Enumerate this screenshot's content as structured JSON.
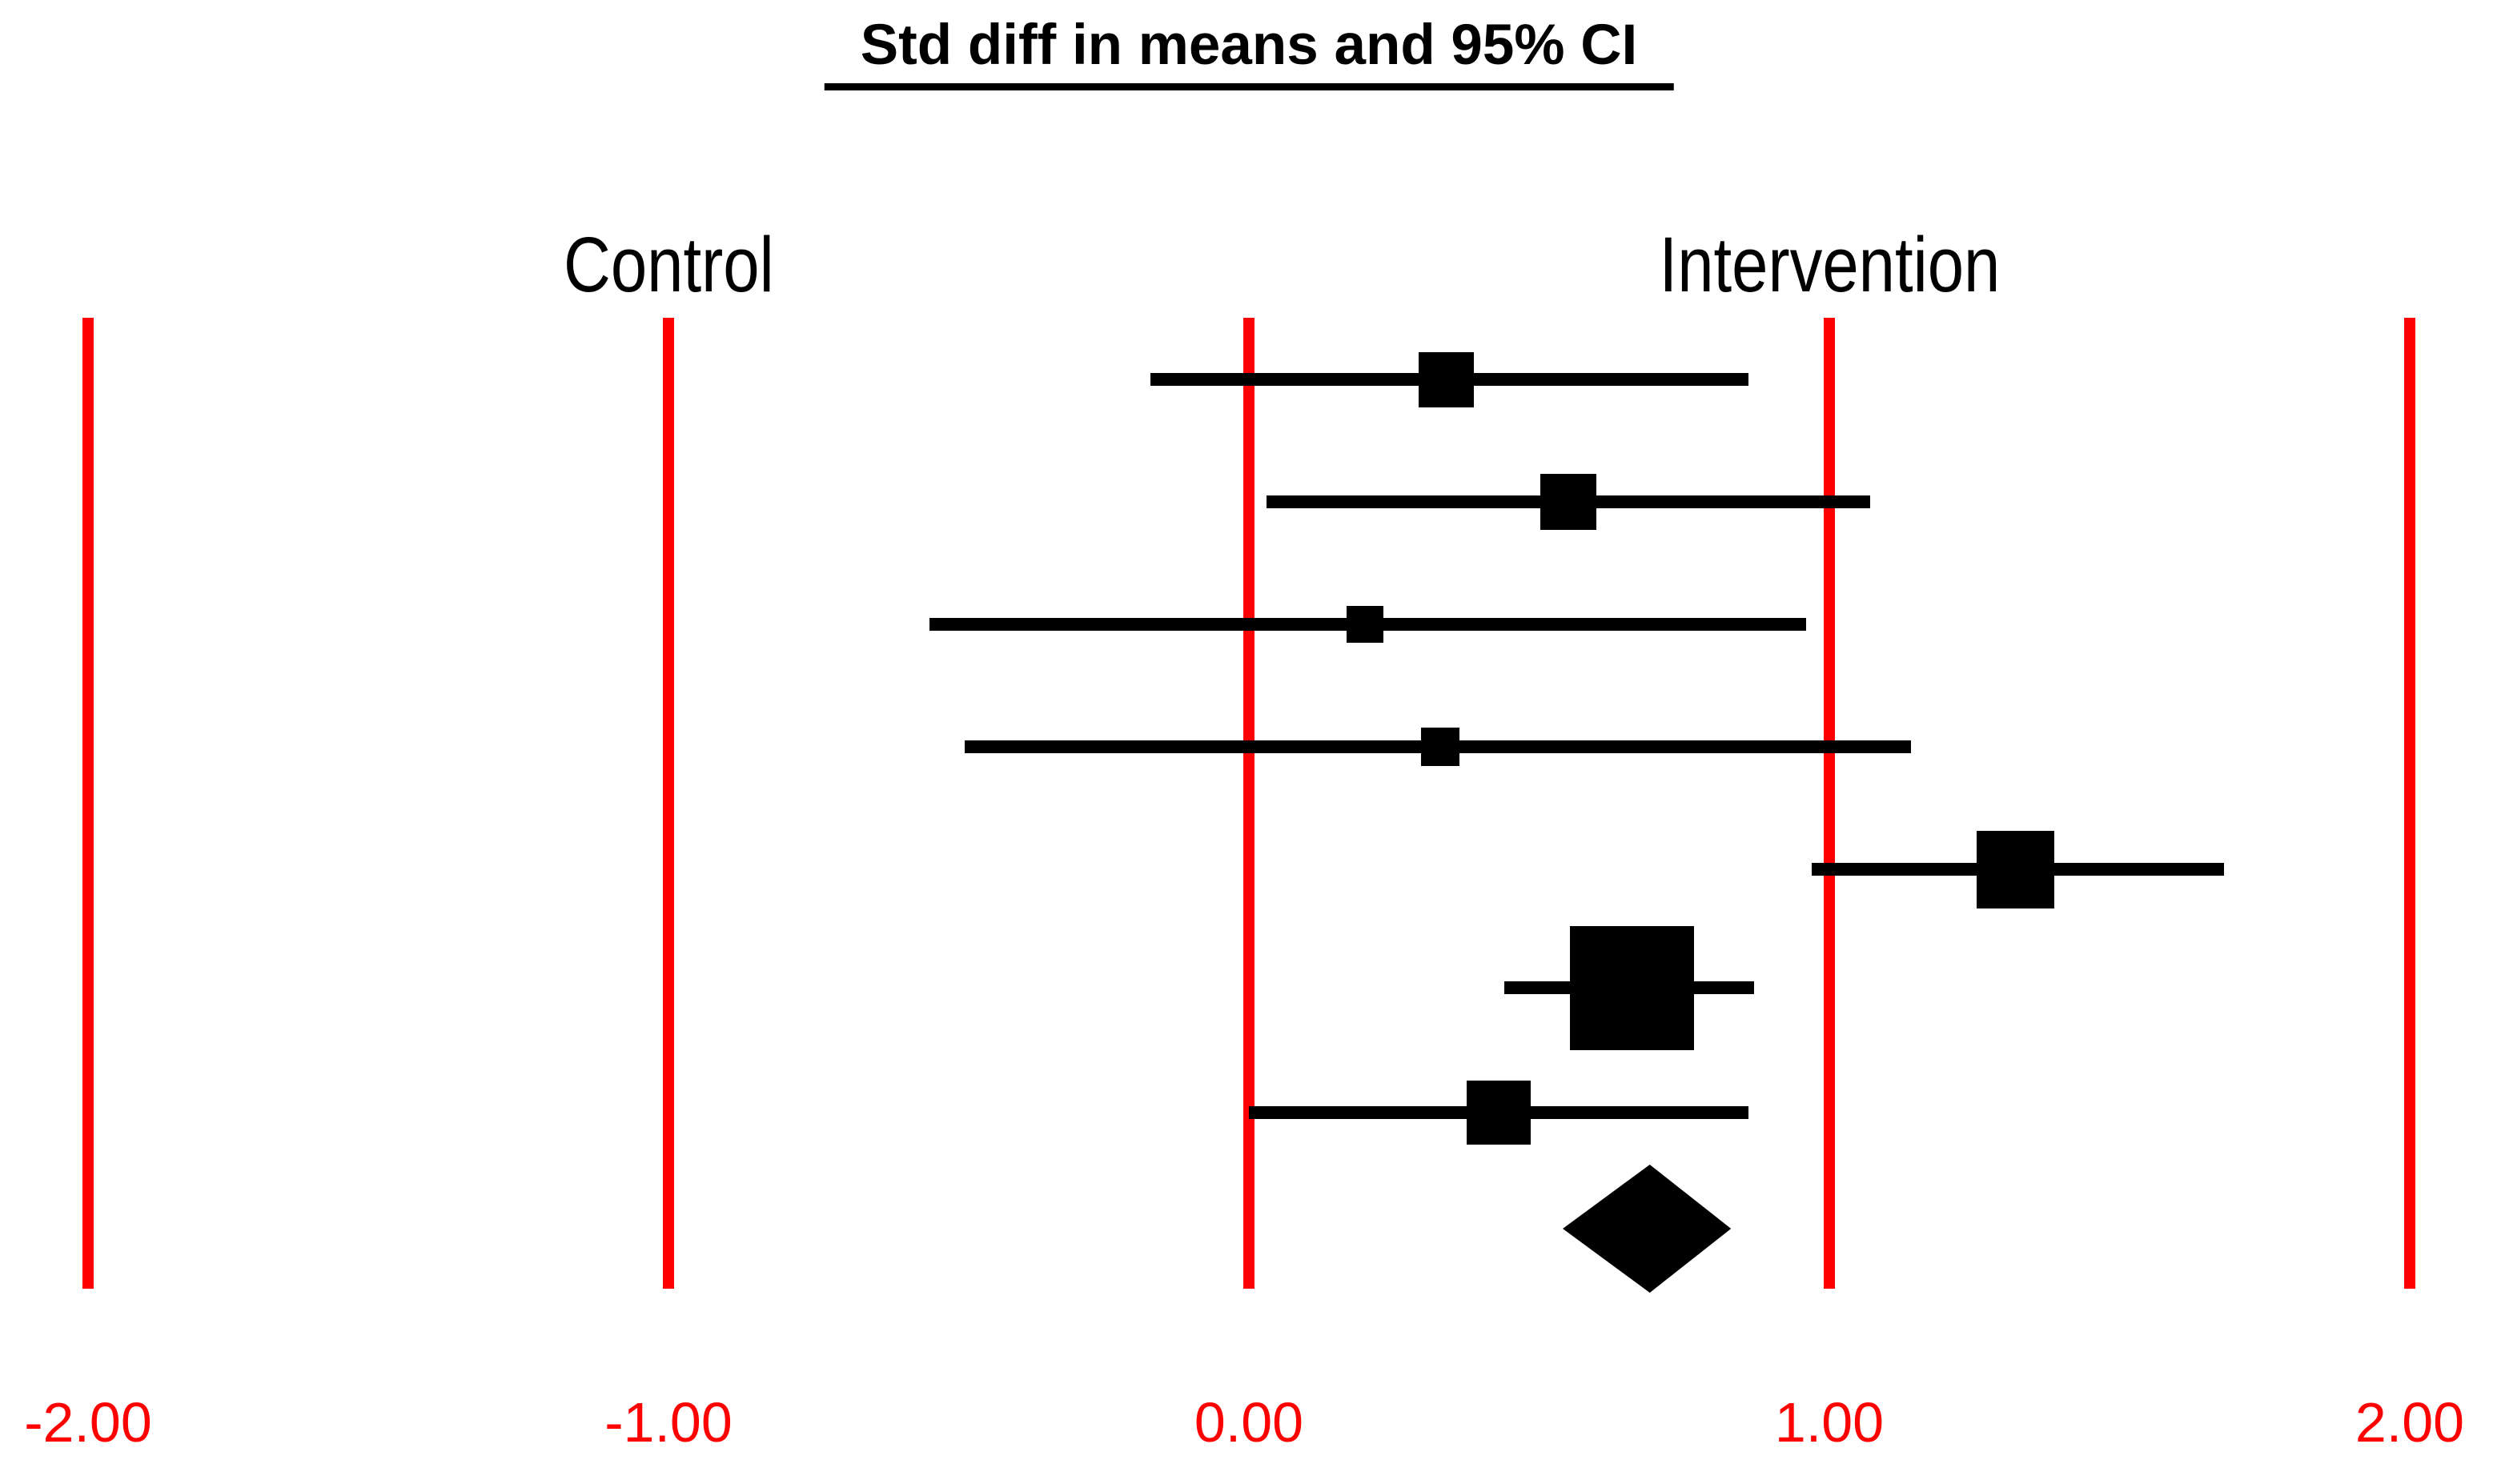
{
  "title": "Std diff in means and 95% CI",
  "column_labels": {
    "control": "Control",
    "intervention": "Intervention"
  },
  "axis": {
    "tick_labels": [
      "-2.00",
      "-1.00",
      "0.00",
      "1.00",
      "2.00"
    ],
    "tick_values": [
      -2,
      -1,
      0,
      1,
      2
    ],
    "label_color": "#ff0000"
  },
  "colors": {
    "gridline": "#ff0000",
    "data": "#000000"
  },
  "chart_data": {
    "type": "forest",
    "effect_measure": "Std diff in means",
    "ci_level": "95%",
    "xlim": [
      -2,
      2
    ],
    "gridline_values": [
      -2,
      -1,
      0,
      1,
      2
    ],
    "studies": [
      {
        "mean": 0.34,
        "ci_low": -0.17,
        "ci_high": 0.86,
        "marker_px": 69
      },
      {
        "mean": 0.55,
        "ci_low": 0.03,
        "ci_high": 1.07,
        "marker_px": 70
      },
      {
        "mean": 0.2,
        "ci_low": -0.55,
        "ci_high": 0.96,
        "marker_px": 46
      },
      {
        "mean": 0.33,
        "ci_low": -0.49,
        "ci_high": 1.14,
        "marker_px": 48
      },
      {
        "mean": 1.32,
        "ci_low": 0.97,
        "ci_high": 1.68,
        "marker_px": 97
      },
      {
        "mean": 0.66,
        "ci_low": 0.44,
        "ci_high": 0.87,
        "marker_px": 155
      },
      {
        "mean": 0.43,
        "ci_low": 0.0,
        "ci_high": 0.86,
        "marker_px": 80
      }
    ],
    "pooled": {
      "mean": 0.69,
      "ci_low": 0.54,
      "ci_high": 0.83,
      "shape": "diamond"
    }
  }
}
